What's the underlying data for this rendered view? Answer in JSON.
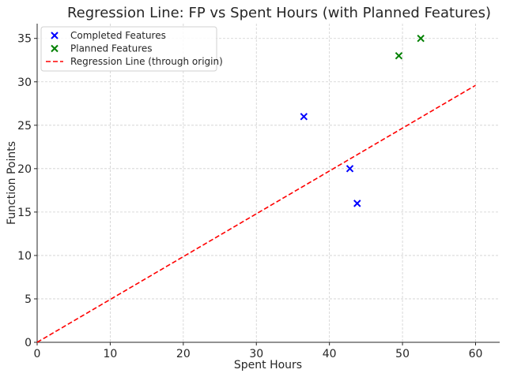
{
  "chart_data": {
    "type": "scatter",
    "title": "Regression Line: FP vs Spent Hours (with Planned Features)",
    "xlabel": "Spent Hours",
    "ylabel": "Function Points",
    "xlim": [
      0,
      63.3
    ],
    "ylim": [
      0,
      36.7
    ],
    "xticks": [
      0,
      10,
      20,
      30,
      40,
      50,
      60
    ],
    "yticks": [
      0,
      5,
      10,
      15,
      20,
      25,
      30,
      35
    ],
    "grid": true,
    "legend_position": "top-left",
    "series": [
      {
        "name": "Completed Features",
        "kind": "scatter",
        "marker": "x",
        "color": "#0000ff",
        "points": [
          {
            "x": 36.5,
            "y": 26
          },
          {
            "x": 42.8,
            "y": 20
          },
          {
            "x": 43.8,
            "y": 16
          }
        ]
      },
      {
        "name": "Planned Features",
        "kind": "scatter",
        "marker": "x",
        "color": "#008000",
        "points": [
          {
            "x": 49.5,
            "y": 33
          },
          {
            "x": 52.5,
            "y": 35
          }
        ]
      },
      {
        "name": "Regression Line (through origin)",
        "kind": "line",
        "style": "dashed",
        "color": "#ff0000",
        "points": [
          {
            "x": 0,
            "y": 0
          },
          {
            "x": 60,
            "y": 29.6
          }
        ]
      }
    ]
  }
}
